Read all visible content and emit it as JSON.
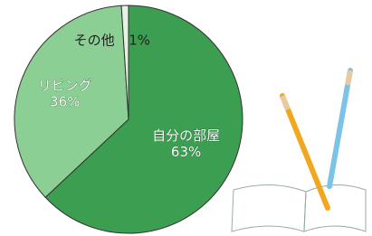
{
  "chart_data": {
    "type": "pie",
    "categories": [
      "自分の部屋",
      "リビング",
      "その他"
    ],
    "values": [
      63,
      36,
      1
    ],
    "value_labels": [
      "63%",
      "36%",
      "1%"
    ],
    "colors": [
      "#3c9e50",
      "#8ccf95",
      "#e4f3e4"
    ]
  }
}
